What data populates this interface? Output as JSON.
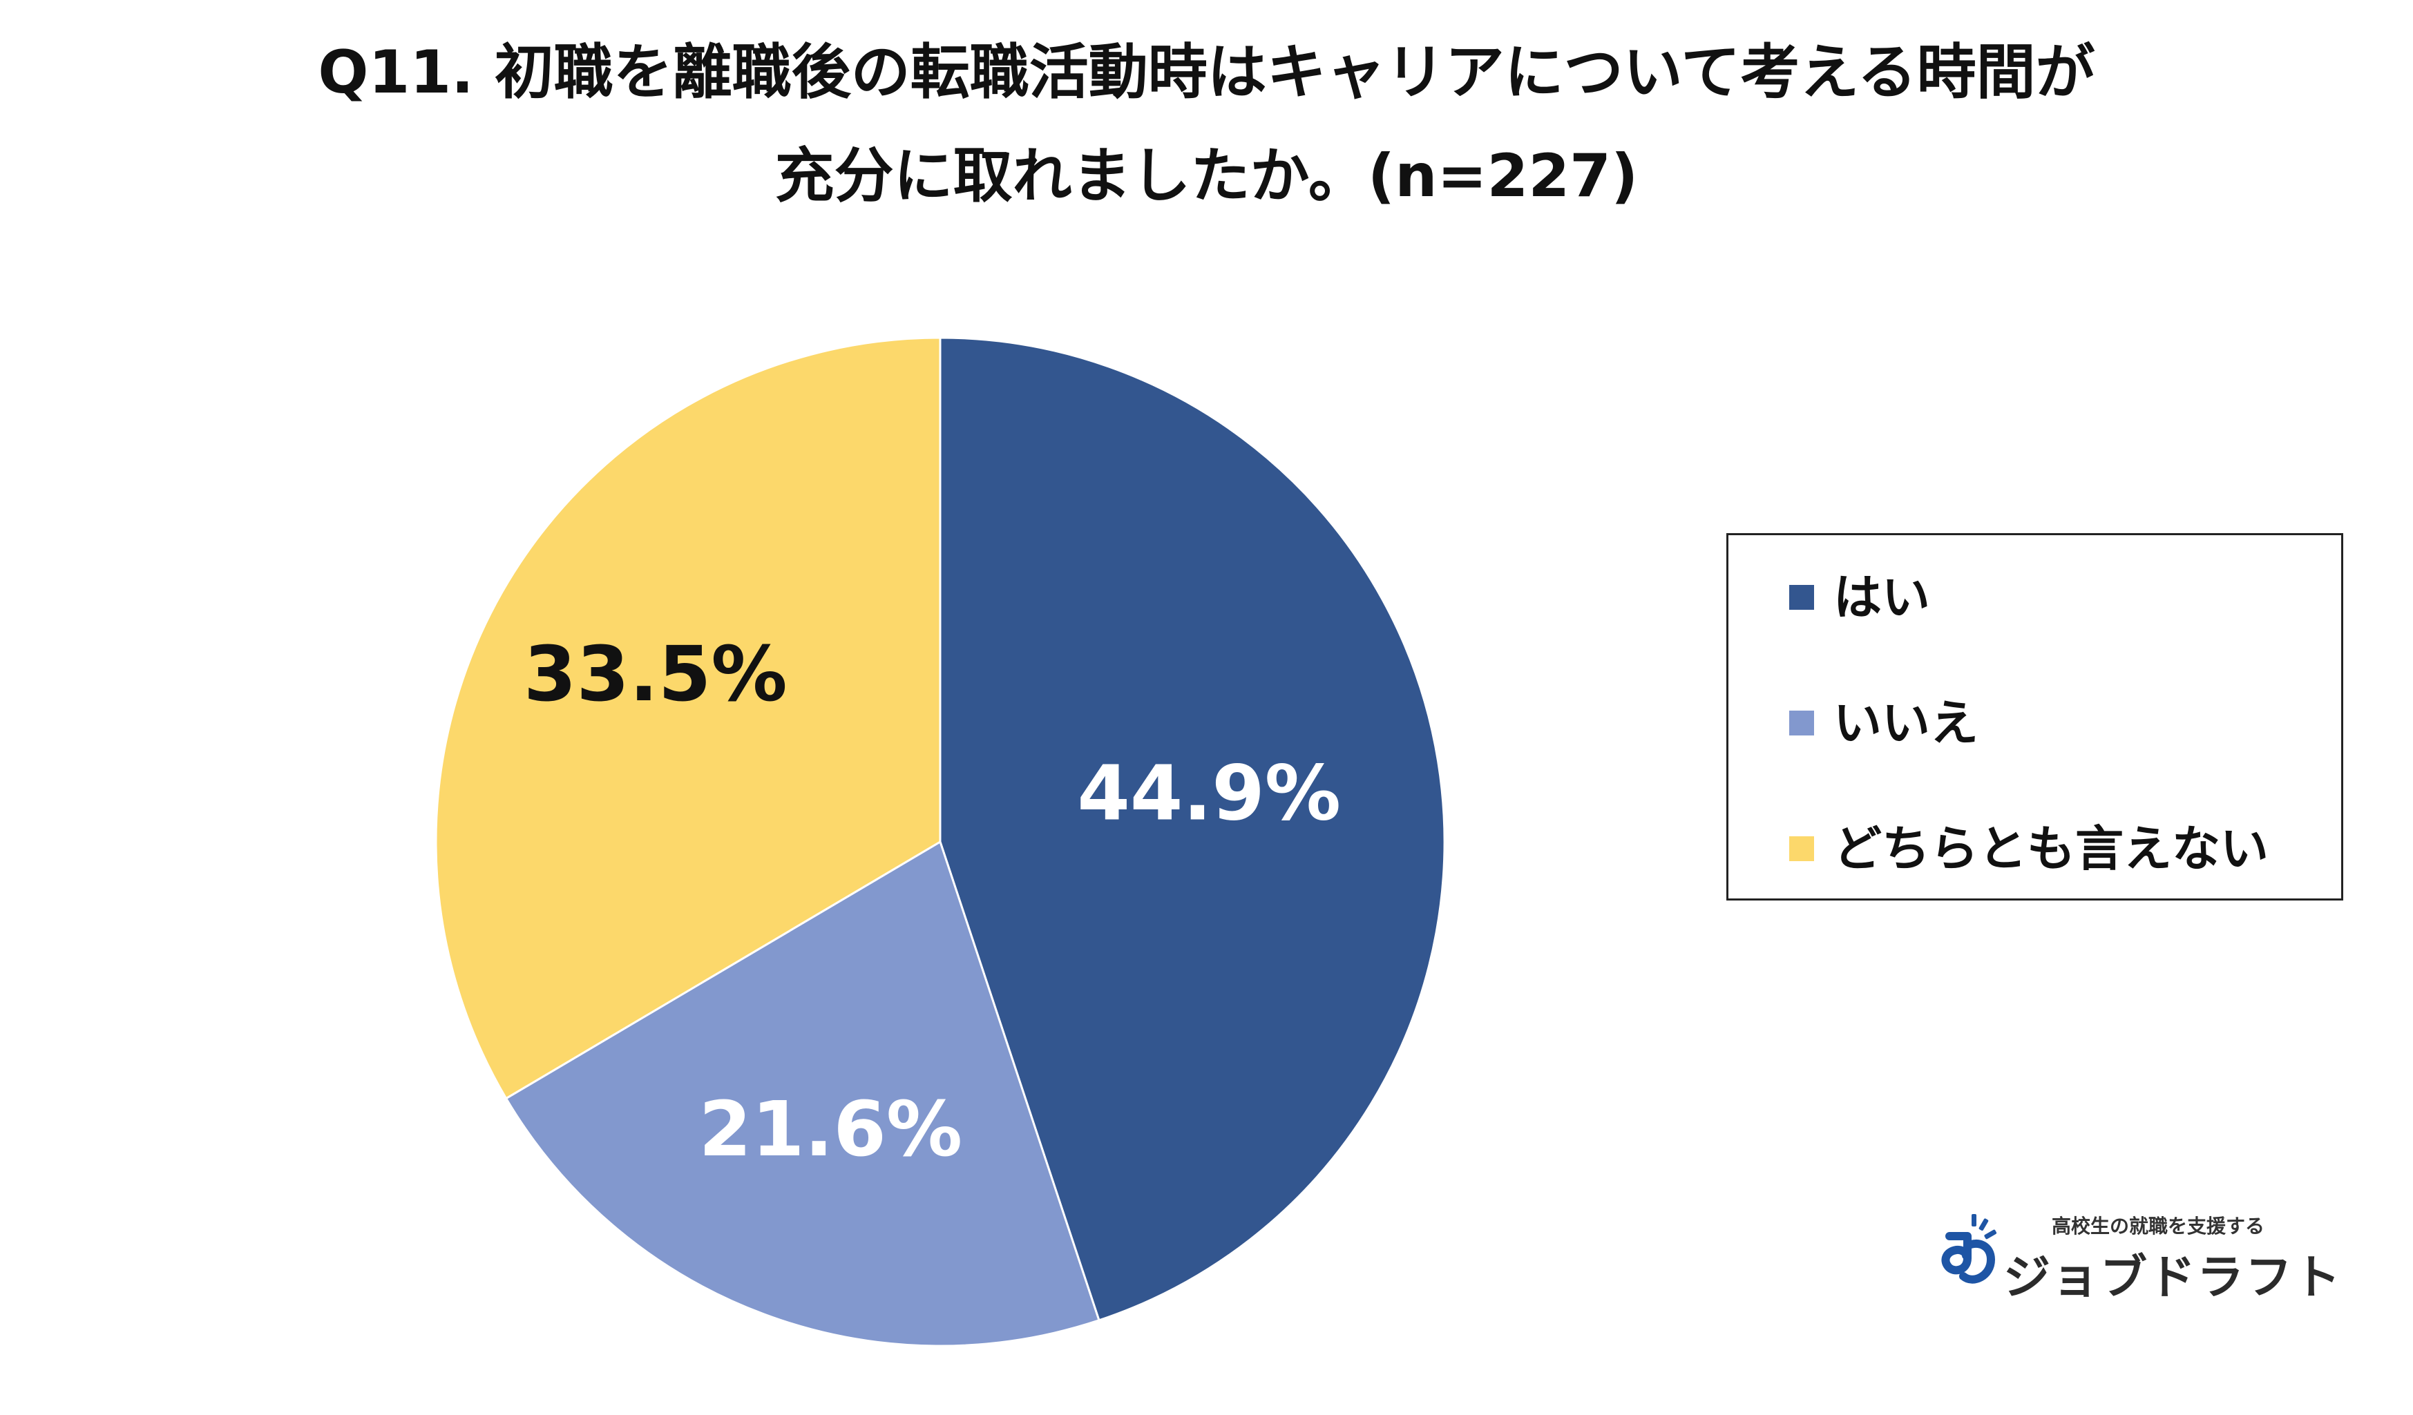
{
  "title": {
    "line1": "Q11. 初職を離職後の転職活動時はキャリアについて考える時間が",
    "line2": "充分に取れましたか。(n=227)"
  },
  "chart_data": {
    "type": "pie",
    "categories": [
      "はい",
      "いいえ",
      "どちらとも言えない"
    ],
    "values": [
      44.9,
      21.6,
      33.5
    ],
    "value_labels": [
      "44.9%",
      "21.6%",
      "33.5%"
    ],
    "colors": [
      "#33568F",
      "#8298CE",
      "#FCD86B"
    ],
    "label_colors": [
      "#ffffff",
      "#ffffff",
      "#111111"
    ],
    "start": "12 o'clock, clockwise",
    "legend_placement": "right"
  },
  "legend": {
    "items": [
      {
        "label": "はい",
        "color": "#33568F"
      },
      {
        "label": "いいえ",
        "color": "#8298CE"
      },
      {
        "label": "どちらとも言えない",
        "color": "#FCD86B"
      }
    ]
  },
  "logo": {
    "tagline": "高校生の就職を支援する",
    "name": "ジョブドラフト",
    "accent_color": "#1E55A5"
  }
}
